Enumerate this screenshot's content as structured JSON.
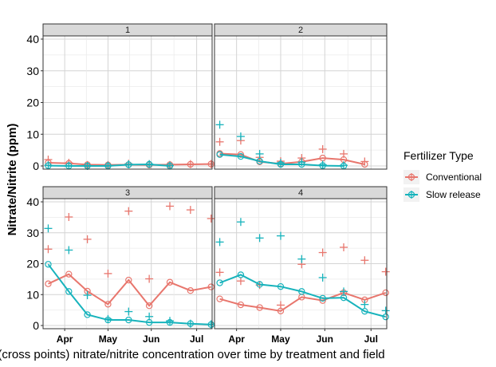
{
  "chart_data": {
    "type": "line",
    "ylabel": "Nitrate/Nitrite (ppm)",
    "xlabel": "(cross points) nitrate/nitrite concentration over time by treatment and field",
    "legend_title": "Fertilizer Type",
    "legend_placement": "right",
    "grid": true,
    "ylim": [
      0,
      40
    ],
    "yticks": [
      "0",
      "10",
      "20",
      "30",
      "40"
    ],
    "xlim": [
      0.45,
      8.65
    ],
    "xticks": [
      {
        "label": "Apr",
        "x": 1.5
      },
      {
        "label": "May",
        "x": 3.6
      },
      {
        "label": "Jun",
        "x": 5.7
      },
      {
        "label": "Jul",
        "x": 7.9
      }
    ],
    "colors": {
      "Conventional": "#e8766d",
      "Slow release": "#17b3bc"
    },
    "panels": [
      {
        "label": "1",
        "series": [
          {
            "name": "Conventional",
            "line": [
              [
                0.7,
                1.0
              ],
              [
                1.7,
                0.8
              ],
              [
                2.6,
                0.4
              ],
              [
                3.6,
                0.3
              ],
              [
                4.6,
                0.4
              ],
              [
                5.6,
                0.3
              ],
              [
                6.6,
                0.4
              ],
              [
                7.6,
                0.5
              ],
              [
                8.6,
                0.6
              ]
            ],
            "crosses": [
              [
                0.7,
                2.0
              ],
              [
                1.7,
                1.0
              ],
              [
                2.6,
                0.3
              ],
              [
                3.6,
                0.3
              ],
              [
                4.6,
                0.7
              ],
              [
                5.6,
                0.5
              ],
              [
                6.6,
                0.3
              ],
              [
                7.6,
                0.6
              ],
              [
                8.6,
                0.6
              ]
            ]
          },
          {
            "name": "Slow release",
            "line": [
              [
                0.7,
                0.1
              ],
              [
                1.7,
                0.0
              ],
              [
                2.6,
                0.0
              ],
              [
                3.6,
                0.0
              ],
              [
                4.6,
                0.4
              ],
              [
                5.6,
                0.5
              ],
              [
                6.6,
                0.0
              ]
            ],
            "crosses": [
              [
                0.7,
                0.2
              ],
              [
                1.7,
                0.1
              ],
              [
                2.6,
                0.0
              ],
              [
                3.6,
                0.1
              ],
              [
                4.6,
                0.5
              ],
              [
                5.6,
                0.6
              ],
              [
                6.6,
                0.1
              ]
            ]
          }
        ]
      },
      {
        "label": "2",
        "series": [
          {
            "name": "Conventional",
            "line": [
              [
                0.7,
                3.9
              ],
              [
                1.7,
                3.6
              ],
              [
                2.6,
                1.3
              ],
              [
                3.6,
                0.7
              ],
              [
                4.6,
                1.3
              ],
              [
                5.6,
                2.5
              ],
              [
                6.6,
                2.0
              ],
              [
                7.6,
                0.5
              ]
            ],
            "crosses": [
              [
                0.7,
                7.6
              ],
              [
                1.7,
                8.0
              ],
              [
                2.6,
                2.7
              ],
              [
                3.6,
                1.5
              ],
              [
                4.6,
                2.5
              ],
              [
                5.6,
                5.3
              ],
              [
                6.6,
                3.8
              ],
              [
                7.6,
                1.4
              ]
            ]
          },
          {
            "name": "Slow release",
            "line": [
              [
                0.7,
                3.6
              ],
              [
                1.7,
                3.0
              ],
              [
                2.6,
                1.5
              ],
              [
                3.6,
                0.5
              ],
              [
                4.6,
                0.5
              ],
              [
                5.6,
                0.1
              ],
              [
                6.6,
                0.0
              ]
            ],
            "crosses": [
              [
                0.7,
                13.0
              ],
              [
                1.7,
                9.3
              ],
              [
                2.6,
                3.8
              ],
              [
                3.6,
                1.0
              ],
              [
                4.6,
                1.2
              ],
              [
                5.6,
                0.4
              ],
              [
                6.6,
                0.2
              ]
            ]
          }
        ]
      },
      {
        "label": "3",
        "series": [
          {
            "name": "Conventional",
            "line": [
              [
                0.7,
                13.5
              ],
              [
                1.7,
                16.6
              ],
              [
                2.6,
                11.1
              ],
              [
                3.6,
                6.9
              ],
              [
                4.6,
                14.7
              ],
              [
                5.6,
                6.4
              ],
              [
                6.6,
                14.0
              ],
              [
                7.6,
                11.3
              ],
              [
                8.6,
                12.5
              ]
            ],
            "crosses": [
              [
                0.7,
                24.7
              ],
              [
                1.7,
                35.1
              ],
              [
                2.6,
                27.9
              ],
              [
                3.6,
                16.8
              ],
              [
                4.6,
                37.0
              ],
              [
                5.6,
                15.1
              ],
              [
                6.6,
                38.6
              ],
              [
                7.6,
                37.4
              ],
              [
                8.6,
                34.6
              ]
            ]
          },
          {
            "name": "Slow release",
            "line": [
              [
                0.7,
                19.8
              ],
              [
                1.7,
                11.0
              ],
              [
                2.6,
                3.5
              ],
              [
                3.6,
                1.8
              ],
              [
                4.6,
                1.8
              ],
              [
                5.6,
                1.0
              ],
              [
                6.6,
                1.0
              ],
              [
                7.6,
                0.6
              ],
              [
                8.6,
                0.3
              ]
            ],
            "crosses": [
              [
                0.7,
                31.4
              ],
              [
                1.7,
                24.4
              ],
              [
                2.6,
                9.8
              ],
              [
                3.6,
                2.1
              ],
              [
                4.6,
                4.5
              ],
              [
                5.6,
                2.9
              ],
              [
                6.6,
                1.5
              ],
              [
                7.6,
                0.6
              ],
              [
                8.6,
                0.4
              ]
            ]
          }
        ]
      },
      {
        "label": "4",
        "series": [
          {
            "name": "Conventional",
            "line": [
              [
                0.7,
                8.6
              ],
              [
                1.7,
                6.7
              ],
              [
                2.6,
                5.8
              ],
              [
                3.6,
                4.7
              ],
              [
                4.6,
                9.2
              ],
              [
                5.6,
                8.1
              ],
              [
                6.6,
                10.6
              ],
              [
                7.6,
                8.3
              ],
              [
                8.6,
                10.6
              ]
            ],
            "crosses": [
              [
                0.7,
                17.2
              ],
              [
                1.7,
                14.4
              ],
              [
                2.6,
                13.1
              ],
              [
                3.6,
                6.6
              ],
              [
                4.6,
                19.8
              ],
              [
                5.6,
                23.6
              ],
              [
                6.6,
                25.3
              ],
              [
                7.6,
                21.1
              ],
              [
                8.6,
                17.4
              ]
            ]
          },
          {
            "name": "Slow release",
            "line": [
              [
                0.7,
                13.8
              ],
              [
                1.7,
                16.4
              ],
              [
                2.6,
                13.3
              ],
              [
                3.6,
                12.6
              ],
              [
                4.6,
                11.0
              ],
              [
                5.6,
                8.8
              ],
              [
                6.6,
                9.0
              ],
              [
                7.6,
                4.6
              ],
              [
                8.6,
                2.8
              ]
            ],
            "crosses": [
              [
                0.7,
                27.0
              ],
              [
                1.7,
                33.5
              ],
              [
                2.6,
                28.3
              ],
              [
                3.6,
                29.0
              ],
              [
                4.6,
                21.5
              ],
              [
                5.6,
                15.5
              ],
              [
                6.6,
                11.0
              ],
              [
                7.6,
                6.8
              ],
              [
                8.6,
                4.8
              ]
            ]
          }
        ]
      }
    ]
  }
}
